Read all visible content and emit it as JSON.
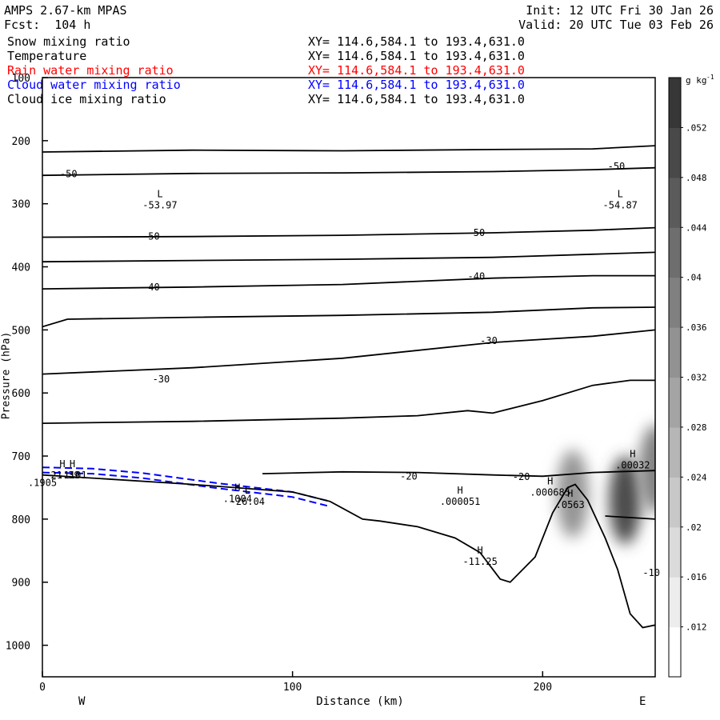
{
  "header": {
    "model": "AMPS 2.67-km MPAS",
    "forecast": "Fcst:  104 h",
    "init": "Init: 12 UTC Fri 30 Jan 26",
    "valid": "Valid: 20 UTC Tue 03 Feb 26"
  },
  "fields": [
    {
      "name": "Snow mixing ratio",
      "xy": "XY= 114.6,584.1 to 193.4,631.0",
      "color": "#000000"
    },
    {
      "name": "Temperature",
      "xy": "XY= 114.6,584.1 to 193.4,631.0",
      "color": "#000000"
    },
    {
      "name": "Rain water mixing ratio",
      "xy": "XY= 114.6,584.1 to 193.4,631.0",
      "color": "#ff0000"
    },
    {
      "name": "Cloud water mixing ratio",
      "xy": "XY= 114.6,584.1 to 193.4,631.0",
      "color": "#0000ff"
    },
    {
      "name": "Cloud ice mixing ratio",
      "xy": "XY= 114.6,584.1 to 193.4,631.0",
      "color": "#000000"
    }
  ],
  "chart_data": {
    "type": "cross-section contour",
    "xlabel": "Distance (km)",
    "ylabel": "Pressure (hPa)",
    "xlim": [
      0,
      245
    ],
    "ylim": [
      1050,
      100
    ],
    "x_ticks": [
      0,
      100,
      200
    ],
    "y_ticks": [
      100,
      200,
      300,
      400,
      500,
      600,
      700,
      800,
      900,
      1000
    ],
    "left_end_label": "W",
    "right_end_label": "E",
    "colorbar": {
      "unit": "g kg",
      "unit_exponent": "-1",
      "levels": [
        0.012,
        0.016,
        0.02,
        0.024,
        0.028,
        0.032,
        0.036,
        0.04,
        0.044,
        0.048,
        0.052
      ],
      "labels": [
        ".012",
        ".016",
        ".02",
        ".024",
        ".028",
        ".032",
        ".036",
        ".04",
        ".044",
        ".048",
        ".052"
      ]
    },
    "temperature_contours": [
      {
        "points": [
          [
            0,
            218
          ],
          [
            60,
            215
          ],
          [
            120,
            216
          ],
          [
            180,
            214
          ],
          [
            220,
            213
          ],
          [
            245,
            208
          ]
        ]
      },
      {
        "label": "-50",
        "label_positions": [
          [
            7,
            253
          ],
          [
            226,
            241
          ]
        ],
        "points": [
          [
            0,
            255
          ],
          [
            60,
            252
          ],
          [
            120,
            251
          ],
          [
            180,
            249
          ],
          [
            220,
            246
          ],
          [
            245,
            243
          ]
        ]
      },
      {
        "label": "-50",
        "label_positions": [
          [
            40,
            352
          ],
          [
            170,
            346
          ]
        ],
        "points": [
          [
            0,
            353
          ],
          [
            60,
            352
          ],
          [
            120,
            350
          ],
          [
            180,
            346
          ],
          [
            220,
            342
          ],
          [
            245,
            338
          ]
        ]
      },
      {
        "points": [
          [
            0,
            392
          ],
          [
            60,
            390
          ],
          [
            120,
            388
          ],
          [
            180,
            385
          ],
          [
            220,
            380
          ],
          [
            245,
            377
          ]
        ]
      },
      {
        "label": "-40",
        "label_positions": [
          [
            40,
            432
          ],
          [
            170,
            415
          ]
        ],
        "points": [
          [
            0,
            435
          ],
          [
            60,
            432
          ],
          [
            120,
            428
          ],
          [
            180,
            418
          ],
          [
            220,
            414
          ],
          [
            245,
            414
          ]
        ]
      },
      {
        "points": [
          [
            0,
            495
          ],
          [
            10,
            483
          ],
          [
            60,
            480
          ],
          [
            120,
            477
          ],
          [
            180,
            472
          ],
          [
            220,
            465
          ],
          [
            245,
            464
          ]
        ]
      },
      {
        "label": "-30",
        "label_positions": [
          [
            44,
            578
          ],
          [
            175,
            517
          ]
        ],
        "points": [
          [
            0,
            570
          ],
          [
            60,
            560
          ],
          [
            120,
            545
          ],
          [
            180,
            520
          ],
          [
            220,
            510
          ],
          [
            245,
            500
          ]
        ]
      },
      {
        "points": [
          [
            0,
            648
          ],
          [
            60,
            645
          ],
          [
            120,
            640
          ],
          [
            150,
            636
          ],
          [
            170,
            628
          ],
          [
            180,
            632
          ],
          [
            200,
            612
          ],
          [
            220,
            588
          ],
          [
            235,
            580
          ],
          [
            245,
            580
          ]
        ]
      },
      {
        "label": "-20",
        "label_positions": [
          [
            143,
            732
          ],
          [
            188,
            733
          ]
        ],
        "points": [
          [
            88,
            728
          ],
          [
            120,
            725
          ],
          [
            150,
            726
          ],
          [
            180,
            730
          ],
          [
            200,
            732
          ],
          [
            220,
            726
          ],
          [
            245,
            723
          ]
        ]
      },
      {
        "label": "-10",
        "label_positions": [
          [
            240,
            885
          ]
        ],
        "points": [
          [
            225,
            795
          ],
          [
            245,
            800
          ]
        ]
      }
    ],
    "extrema": [
      {
        "kind": "L",
        "value": "-53.97",
        "x": 47,
        "p": 300
      },
      {
        "kind": "L",
        "value": "-54.87",
        "x": 231,
        "p": 300
      },
      {
        "kind": "H",
        "value": "-21.39",
        "x": 8,
        "p": 728
      },
      {
        "kind": "L",
        "value": "-26.04",
        "x": 82,
        "p": 770
      },
      {
        "kind": "H",
        "value": "-11.25",
        "x": 175,
        "p": 865
      },
      {
        "kind": "H",
        "value": ".000051",
        "x": 167,
        "p": 770
      },
      {
        "kind": "H",
        "value": ".000685",
        "x": 203,
        "p": 755
      },
      {
        "kind": "H",
        "value": ".00032",
        "x": 236,
        "p": 712
      },
      {
        "kind": "H",
        "value": ".1101",
        "x": 12,
        "p": 728
      },
      {
        "kind": "H",
        "value": ".1004",
        "x": 78,
        "p": 765
      },
      {
        "kind": "H",
        "value": ".0563",
        "x": 211,
        "p": 775
      },
      {
        "kind": "",
        "value": ".1905",
        "x": 0,
        "p": 740
      }
    ],
    "terrain": [
      [
        0,
        730
      ],
      [
        20,
        735
      ],
      [
        60,
        745
      ],
      [
        100,
        757
      ],
      [
        115,
        772
      ],
      [
        128,
        800
      ],
      [
        135,
        803
      ],
      [
        150,
        812
      ],
      [
        165,
        830
      ],
      [
        175,
        853
      ],
      [
        183,
        895
      ],
      [
        187,
        900
      ],
      [
        197,
        860
      ],
      [
        204,
        790
      ],
      [
        210,
        750
      ],
      [
        213,
        745
      ],
      [
        218,
        770
      ],
      [
        225,
        830
      ],
      [
        230,
        880
      ],
      [
        235,
        950
      ],
      [
        240,
        972
      ],
      [
        245,
        968
      ]
    ],
    "cloud_water": [
      [
        0,
        718
      ],
      [
        20,
        720
      ],
      [
        40,
        727
      ],
      [
        70,
        743
      ],
      [
        100,
        757
      ],
      [
        115,
        772
      ]
    ],
    "snow_maxima": [
      {
        "x": 212,
        "p": 760,
        "value": 0.03
      },
      {
        "x": 233,
        "p": 770,
        "value": 0.05
      },
      {
        "x": 245,
        "p": 720,
        "value": 0.035
      }
    ]
  }
}
